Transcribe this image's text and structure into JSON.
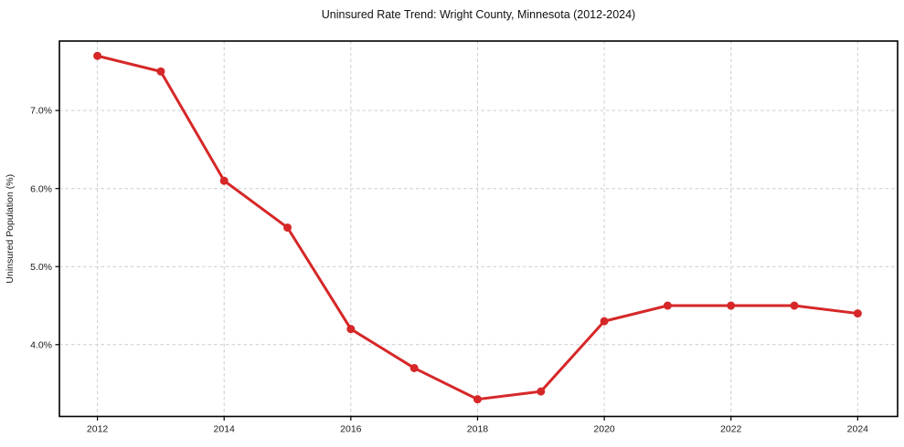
{
  "chart_data": {
    "type": "line",
    "title": "Uninsured Rate Trend: Wright County, Minnesota (2012-2024)",
    "xlabel": "",
    "ylabel": "Uninsured Population (%)",
    "x": [
      2012,
      2013,
      2014,
      2015,
      2016,
      2017,
      2018,
      2019,
      2020,
      2021,
      2022,
      2023,
      2024
    ],
    "series": [
      {
        "name": "Uninsured Rate",
        "values": [
          7.7,
          7.5,
          6.1,
          5.5,
          4.2,
          3.7,
          3.3,
          3.4,
          4.3,
          4.5,
          4.5,
          4.5,
          4.4
        ]
      }
    ],
    "xticks": [
      2012,
      2014,
      2016,
      2018,
      2020,
      2022,
      2024
    ],
    "xtick_labels": [
      "2012",
      "2014",
      "2016",
      "2018",
      "2020",
      "2022",
      "2024"
    ],
    "yticks": [
      4.0,
      5.0,
      6.0,
      7.0
    ],
    "ytick_labels": [
      "4.0%",
      "5.0%",
      "6.0%",
      "7.0%"
    ],
    "xlim": [
      2011.4,
      2024.63
    ],
    "ylim": [
      3.08,
      7.89
    ],
    "grid": true,
    "grid_style": "dashed",
    "legend": "none",
    "colors": {
      "line": "#d62728",
      "marker": "#d62728",
      "grid": "#cccccc",
      "spine": "#000000",
      "text": "#1a1a1a",
      "background": "#ffffff"
    }
  }
}
